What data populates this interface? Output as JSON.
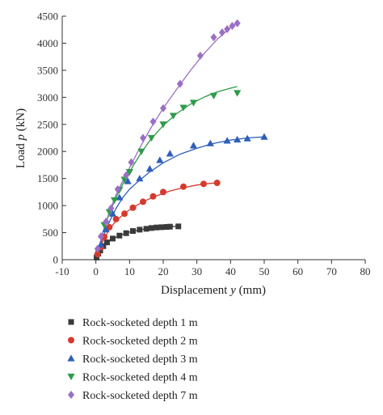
{
  "chart_data": {
    "type": "scatter",
    "xlabel_text": "Displacement ",
    "xlabel_var": "y",
    "xlabel_unit": " (mm)",
    "ylabel_text": "Load ",
    "ylabel_var": "p",
    "ylabel_unit": " (kN)",
    "xlim": [
      -10,
      80
    ],
    "ylim": [
      0,
      4500
    ],
    "x_ticks": [
      -10,
      0,
      10,
      20,
      30,
      40,
      50,
      60,
      70,
      80
    ],
    "y_ticks": [
      0,
      500,
      1000,
      1500,
      2000,
      2500,
      3000,
      3500,
      4000,
      4500
    ],
    "grid": false,
    "legend_position": "bottom",
    "series": [
      {
        "name": "Rock-socketed depth 1 m",
        "marker": "square",
        "color": "#3a3a3a",
        "points": [
          [
            0.2,
            40
          ],
          [
            0.7,
            110
          ],
          [
            1.3,
            170
          ],
          [
            2.2,
            250
          ],
          [
            3.3,
            320
          ],
          [
            5,
            390
          ],
          [
            7,
            445
          ],
          [
            9,
            490
          ],
          [
            11,
            530
          ],
          [
            13,
            555
          ],
          [
            15,
            570
          ],
          [
            16.5,
            585
          ],
          [
            18,
            595
          ],
          [
            19.5,
            600
          ],
          [
            21,
            605
          ],
          [
            22,
            610
          ],
          [
            24.5,
            615
          ]
        ],
        "curve": [
          [
            0,
            0
          ],
          [
            1,
            120
          ],
          [
            2,
            220
          ],
          [
            4,
            340
          ],
          [
            6,
            415
          ],
          [
            8,
            470
          ],
          [
            10,
            510
          ],
          [
            13,
            550
          ],
          [
            16,
            580
          ],
          [
            19,
            600
          ],
          [
            22,
            612
          ],
          [
            24.5,
            618
          ]
        ]
      },
      {
        "name": "Rock-socketed depth 2 m",
        "marker": "circle",
        "color": "#d63a2e",
        "points": [
          [
            0.5,
            100
          ],
          [
            1.5,
            230
          ],
          [
            2.5,
            420
          ],
          [
            4,
            600
          ],
          [
            6,
            750
          ],
          [
            8.5,
            850
          ],
          [
            11,
            960
          ],
          [
            14,
            1070
          ],
          [
            17,
            1170
          ],
          [
            20,
            1250
          ],
          [
            26,
            1350
          ],
          [
            32,
            1400
          ],
          [
            36,
            1420
          ]
        ],
        "curve": [
          [
            0,
            0
          ],
          [
            1,
            180
          ],
          [
            2,
            330
          ],
          [
            4,
            560
          ],
          [
            6,
            720
          ],
          [
            9,
            880
          ],
          [
            12,
            1000
          ],
          [
            15,
            1100
          ],
          [
            18,
            1180
          ],
          [
            22,
            1270
          ],
          [
            26,
            1330
          ],
          [
            30,
            1380
          ],
          [
            34,
            1410
          ],
          [
            36,
            1420
          ]
        ]
      },
      {
        "name": "Rock-socketed depth 3 m",
        "marker": "triangle-up",
        "color": "#2f5fb8",
        "points": [
          [
            1.5,
            280
          ],
          [
            3,
            560
          ],
          [
            5,
            850
          ],
          [
            7,
            1150
          ],
          [
            9.5,
            1450
          ],
          [
            13,
            1500
          ],
          [
            16,
            1680
          ],
          [
            19,
            1840
          ],
          [
            22,
            1960
          ],
          [
            29,
            2110
          ],
          [
            34,
            2150
          ],
          [
            39,
            2200
          ],
          [
            42,
            2220
          ],
          [
            45,
            2240
          ],
          [
            50,
            2270
          ]
        ],
        "curve": [
          [
            0,
            0
          ],
          [
            2,
            400
          ],
          [
            4,
            700
          ],
          [
            6,
            950
          ],
          [
            8,
            1150
          ],
          [
            10,
            1300
          ],
          [
            13,
            1470
          ],
          [
            16,
            1620
          ],
          [
            20,
            1790
          ],
          [
            25,
            1950
          ],
          [
            30,
            2060
          ],
          [
            35,
            2150
          ],
          [
            40,
            2210
          ],
          [
            45,
            2250
          ],
          [
            50,
            2270
          ]
        ]
      },
      {
        "name": "Rock-socketed depth 4 m",
        "marker": "triangle-down",
        "color": "#2e9b4a",
        "points": [
          [
            2.5,
            640
          ],
          [
            4,
            880
          ],
          [
            5.5,
            1100
          ],
          [
            7,
            1290
          ],
          [
            8.5,
            1480
          ],
          [
            10,
            1620
          ],
          [
            13.5,
            2000
          ],
          [
            16.5,
            2250
          ],
          [
            20,
            2500
          ],
          [
            23,
            2660
          ],
          [
            26,
            2810
          ],
          [
            29,
            2900
          ],
          [
            35,
            3030
          ],
          [
            42,
            3080
          ]
        ],
        "curve": [
          [
            0,
            0
          ],
          [
            2,
            480
          ],
          [
            4,
            860
          ],
          [
            6,
            1150
          ],
          [
            8,
            1400
          ],
          [
            10,
            1620
          ],
          [
            13,
            1930
          ],
          [
            16,
            2200
          ],
          [
            20,
            2480
          ],
          [
            24,
            2700
          ],
          [
            28,
            2870
          ],
          [
            32,
            3000
          ],
          [
            36,
            3100
          ],
          [
            40,
            3170
          ],
          [
            42,
            3200
          ]
        ]
      },
      {
        "name": "Rock-socketed depth 7 m",
        "marker": "diamond",
        "color": "#9b6fc4",
        "points": [
          [
            0.5,
            200
          ],
          [
            1.5,
            430
          ],
          [
            3,
            700
          ],
          [
            4.5,
            950
          ],
          [
            6.5,
            1300
          ],
          [
            9,
            1560
          ],
          [
            10.5,
            1800
          ],
          [
            14,
            2250
          ],
          [
            17,
            2550
          ],
          [
            20,
            2800
          ],
          [
            25,
            3250
          ],
          [
            31,
            3770
          ],
          [
            35,
            4110
          ],
          [
            37.5,
            4200
          ],
          [
            39,
            4260
          ],
          [
            40.5,
            4320
          ],
          [
            42,
            4370
          ]
        ],
        "curve": [
          [
            0,
            0
          ],
          [
            2,
            500
          ],
          [
            4,
            880
          ],
          [
            6,
            1200
          ],
          [
            8,
            1460
          ],
          [
            10,
            1700
          ],
          [
            13,
            2060
          ],
          [
            16,
            2400
          ],
          [
            20,
            2800
          ],
          [
            24,
            3150
          ],
          [
            28,
            3490
          ],
          [
            32,
            3800
          ],
          [
            36,
            4070
          ],
          [
            40,
            4290
          ],
          [
            42,
            4380
          ]
        ]
      }
    ]
  }
}
